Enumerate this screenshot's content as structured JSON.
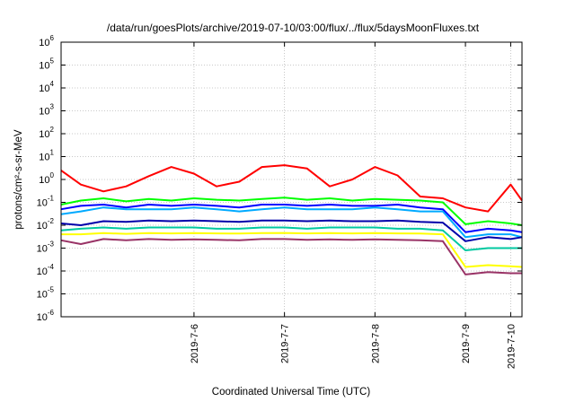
{
  "chart_data": {
    "type": "line",
    "title": "/data/run/goesPlots/archive/2019-07-10/03:00/flux/../flux/5daysMoonFluxes.txt",
    "xlabel": "Coordinated Universal Time (UTC)",
    "ylabel": "protons/cm²-s-sr-MeV",
    "y_scale": "log",
    "ylim": [
      1e-06,
      1000000.0
    ],
    "xlim": [
      "2019-07-05T00:45",
      "2019-07-10T03:00"
    ],
    "grid": true,
    "legend": "none",
    "y_ticks": [
      {
        "value": 1e-06,
        "base": "10",
        "exp": "-6"
      },
      {
        "value": 1e-05,
        "base": "10",
        "exp": "-5"
      },
      {
        "value": 0.0001,
        "base": "10",
        "exp": "-4"
      },
      {
        "value": 0.001,
        "base": "10",
        "exp": "-3"
      },
      {
        "value": 0.01,
        "base": "10",
        "exp": "-2"
      },
      {
        "value": 0.1,
        "base": "10",
        "exp": "-1"
      },
      {
        "value": 1,
        "base": "10",
        "exp": "0"
      },
      {
        "value": 10.0,
        "base": "10",
        "exp": "1"
      },
      {
        "value": 100.0,
        "base": "10",
        "exp": "2"
      },
      {
        "value": 1000.0,
        "base": "10",
        "exp": "3"
      },
      {
        "value": 10000.0,
        "base": "10",
        "exp": "4"
      },
      {
        "value": 100000.0,
        "base": "10",
        "exp": "5"
      },
      {
        "value": 1000000.0,
        "base": "10",
        "exp": "6"
      }
    ],
    "x_ticks": [
      {
        "value": "2019-07-06T12:00",
        "label": "2019-7-6"
      },
      {
        "value": "2019-07-07T12:00",
        "label": "2019-7-7"
      },
      {
        "value": "2019-07-08T12:00",
        "label": "2019-7-8"
      },
      {
        "value": "2019-07-09T12:00",
        "label": "2019-7-9"
      },
      {
        "value": "2019-07-10T00:00",
        "label": "2019-7-10"
      }
    ],
    "x": [
      "2019-07-05T00:45",
      "2019-07-05T06:00",
      "2019-07-05T12:00",
      "2019-07-05T18:00",
      "2019-07-06T00:00",
      "2019-07-06T06:00",
      "2019-07-06T12:00",
      "2019-07-06T18:00",
      "2019-07-07T00:00",
      "2019-07-07T06:00",
      "2019-07-07T12:00",
      "2019-07-07T18:00",
      "2019-07-08T00:00",
      "2019-07-08T06:00",
      "2019-07-08T12:00",
      "2019-07-08T18:00",
      "2019-07-09T00:00",
      "2019-07-09T06:00",
      "2019-07-09T12:00",
      "2019-07-09T18:00",
      "2019-07-10T00:00",
      "2019-07-10T03:00"
    ],
    "series": [
      {
        "color": "#ff0000",
        "values": [
          2.5,
          0.6,
          0.3,
          0.5,
          1.4,
          3.5,
          1.8,
          0.5,
          0.8,
          3.5,
          4.2,
          3.0,
          0.5,
          1.0,
          3.5,
          1.5,
          0.18,
          0.15,
          0.06,
          0.04,
          0.6,
          0.12
        ]
      },
      {
        "color": "#00ff00",
        "values": [
          0.08,
          0.12,
          0.15,
          0.11,
          0.14,
          0.12,
          0.15,
          0.13,
          0.12,
          0.14,
          0.16,
          0.13,
          0.15,
          0.12,
          0.14,
          0.13,
          0.12,
          0.1,
          0.011,
          0.015,
          0.012,
          0.01
        ]
      },
      {
        "color": "#0000ff",
        "values": [
          0.05,
          0.07,
          0.08,
          0.06,
          0.08,
          0.07,
          0.08,
          0.07,
          0.06,
          0.08,
          0.08,
          0.07,
          0.08,
          0.07,
          0.07,
          0.08,
          0.06,
          0.05,
          0.005,
          0.007,
          0.006,
          0.005
        ]
      },
      {
        "color": "#00aaff",
        "values": [
          0.03,
          0.04,
          0.06,
          0.05,
          0.05,
          0.05,
          0.06,
          0.05,
          0.04,
          0.05,
          0.06,
          0.05,
          0.05,
          0.05,
          0.06,
          0.05,
          0.04,
          0.04,
          0.003,
          0.004,
          0.004,
          0.003
        ]
      },
      {
        "color": "#0000aa",
        "values": [
          0.012,
          0.01,
          0.015,
          0.014,
          0.016,
          0.015,
          0.016,
          0.015,
          0.014,
          0.016,
          0.016,
          0.015,
          0.016,
          0.015,
          0.015,
          0.016,
          0.014,
          0.013,
          0.002,
          0.003,
          0.0025,
          0.003
        ]
      },
      {
        "color": "#00c8a0",
        "values": [
          0.006,
          0.007,
          0.008,
          0.007,
          0.008,
          0.008,
          0.008,
          0.007,
          0.007,
          0.008,
          0.008,
          0.007,
          0.008,
          0.008,
          0.008,
          0.007,
          0.007,
          0.006,
          0.0008,
          0.001,
          0.001,
          0.001
        ]
      },
      {
        "color": "#ffff00",
        "values": [
          0.004,
          0.004,
          0.0045,
          0.0042,
          0.0045,
          0.0044,
          0.0045,
          0.0044,
          0.0043,
          0.0045,
          0.0046,
          0.0044,
          0.0045,
          0.0044,
          0.0045,
          0.0044,
          0.0043,
          0.004,
          0.00015,
          0.00018,
          0.00016,
          0.00015
        ]
      },
      {
        "color": "#993366",
        "values": [
          0.0022,
          0.0015,
          0.0025,
          0.0022,
          0.0025,
          0.0023,
          0.0024,
          0.0023,
          0.0022,
          0.0025,
          0.0025,
          0.0023,
          0.0024,
          0.0023,
          0.0024,
          0.0023,
          0.0022,
          0.002,
          7e-05,
          9e-05,
          8e-05,
          8e-05
        ]
      }
    ]
  }
}
